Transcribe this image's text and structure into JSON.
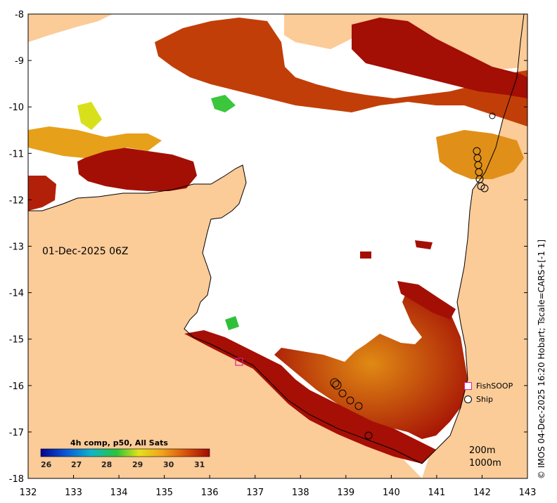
{
  "map": {
    "axes": {
      "x_ticks": [
        "132",
        "133",
        "134",
        "135",
        "136",
        "137",
        "138",
        "139",
        "140",
        "141",
        "142",
        "143"
      ],
      "y_ticks": [
        "-8",
        "-9",
        "-10",
        "-11",
        "-12",
        "-13",
        "-14",
        "-15",
        "-16",
        "-17",
        "-18"
      ]
    },
    "date_label": "01-Dec-2025 06Z",
    "credit": "© IMOS 04-Dec-2025 16:20 Hobart; Tscale=CARS+[-1 1]",
    "legend": {
      "fishsoop": "FishSOOP",
      "ship": "Ship"
    },
    "colorbar": {
      "title": "4h comp, p50, All Sats",
      "ticks": [
        "26",
        "27",
        "28",
        "29",
        "30",
        "31"
      ]
    },
    "contours": [
      "200m",
      "1000m"
    ],
    "colors": {
      "land": "#fbcb98",
      "no_data": "#ffffff",
      "warm": "#a40f05",
      "mid": "#d2540a",
      "cool": "#e8a01a",
      "fishsoop_marker": "#e0219b"
    }
  }
}
